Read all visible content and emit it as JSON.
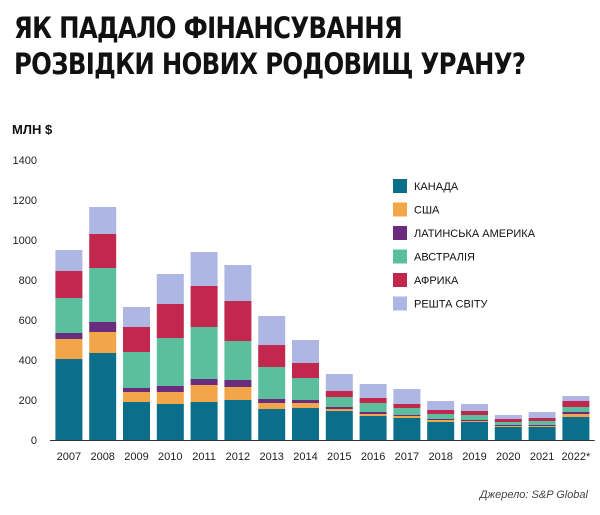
{
  "title_line1": "ЯК ПАДАЛО ФІНАНСУВАННЯ",
  "title_line2": "РОЗВІДКИ НОВИХ РОДОВИЩ УРАНУ?",
  "unit_label": "МЛН $",
  "source": "Джерело: S&P Global",
  "chart_data": {
    "type": "bar",
    "stacked": true,
    "categories": [
      "2007",
      "2008",
      "2009",
      "2010",
      "2011",
      "2012",
      "2013",
      "2014",
      "2015",
      "2016",
      "2017",
      "2018",
      "2019",
      "2020",
      "2021",
      "2022*"
    ],
    "ylim": [
      0,
      1400
    ],
    "yticks": [
      0,
      200,
      400,
      600,
      800,
      1000,
      1200,
      1400
    ],
    "ylabel": "МЛН $",
    "legend_position": "top-right",
    "series": [
      {
        "name": "КАНАДА",
        "color": "#0b6e8a",
        "values": [
          405,
          435,
          190,
          180,
          190,
          200,
          155,
          160,
          145,
          120,
          110,
          90,
          90,
          65,
          65,
          115
        ]
      },
      {
        "name": "США",
        "color": "#f3a54a",
        "values": [
          100,
          105,
          50,
          60,
          85,
          65,
          30,
          25,
          10,
          10,
          10,
          10,
          5,
          5,
          5,
          15
        ]
      },
      {
        "name": "ЛАТИНСЬКА АМЕРИКА",
        "color": "#6a2c7c",
        "values": [
          30,
          50,
          20,
          30,
          30,
          35,
          20,
          15,
          10,
          10,
          5,
          5,
          5,
          5,
          5,
          10
        ]
      },
      {
        "name": "АВСТРАЛІЯ",
        "color": "#5bbf9d",
        "values": [
          175,
          270,
          180,
          240,
          260,
          195,
          160,
          110,
          50,
          45,
          35,
          25,
          25,
          15,
          20,
          25
        ]
      },
      {
        "name": "АФРИКА",
        "color": "#c2284e",
        "values": [
          135,
          170,
          125,
          170,
          205,
          200,
          110,
          75,
          30,
          25,
          20,
          20,
          20,
          15,
          15,
          30
        ]
      },
      {
        "name": "РЕШТА СВІТУ",
        "color": "#aeb6e3",
        "values": [
          105,
          135,
          100,
          150,
          170,
          180,
          145,
          115,
          85,
          70,
          75,
          45,
          35,
          20,
          30,
          25
        ]
      }
    ],
    "source": "Джерело: S&P Global"
  }
}
